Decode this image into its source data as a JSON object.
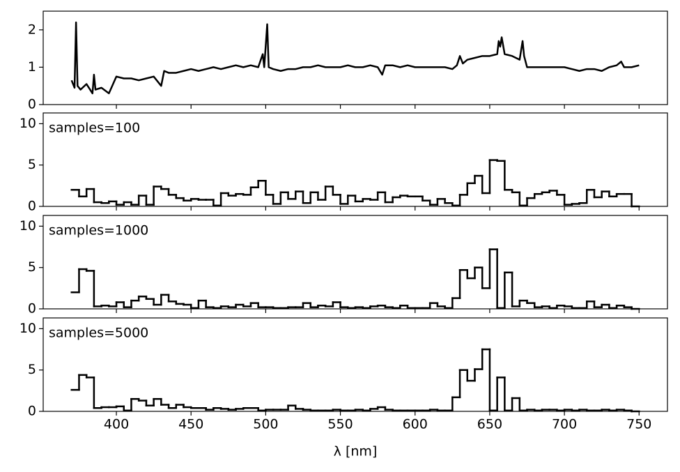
{
  "chart_data": [
    {
      "type": "line",
      "x": [
        370,
        372,
        373,
        374,
        376,
        380,
        384,
        385,
        386,
        390,
        395,
        400,
        405,
        410,
        415,
        420,
        425,
        430,
        432,
        435,
        440,
        445,
        450,
        455,
        460,
        465,
        470,
        475,
        480,
        485,
        490,
        495,
        498,
        499,
        501,
        502,
        505,
        510,
        515,
        520,
        525,
        530,
        535,
        540,
        545,
        550,
        555,
        560,
        565,
        570,
        575,
        578,
        580,
        585,
        590,
        595,
        600,
        605,
        610,
        615,
        620,
        625,
        628,
        630,
        632,
        635,
        640,
        645,
        650,
        655,
        656,
        657,
        658,
        660,
        665,
        670,
        672,
        673,
        675,
        680,
        685,
        690,
        695,
        700,
        705,
        710,
        715,
        720,
        725,
        730,
        735,
        738,
        740,
        745,
        750
      ],
      "values": [
        0.65,
        0.45,
        2.2,
        0.5,
        0.4,
        0.55,
        0.3,
        0.8,
        0.4,
        0.45,
        0.3,
        0.75,
        0.7,
        0.7,
        0.65,
        0.7,
        0.75,
        0.5,
        0.9,
        0.85,
        0.85,
        0.9,
        0.95,
        0.9,
        0.95,
        1.0,
        0.95,
        1.0,
        1.05,
        1.0,
        1.05,
        1.0,
        1.35,
        1.0,
        2.15,
        1.0,
        0.95,
        0.9,
        0.95,
        0.95,
        1.0,
        1.0,
        1.05,
        1.0,
        1.0,
        1.0,
        1.05,
        1.0,
        1.0,
        1.05,
        1.0,
        0.8,
        1.05,
        1.05,
        1.0,
        1.05,
        1.0,
        1.0,
        1.0,
        1.0,
        1.0,
        0.95,
        1.05,
        1.3,
        1.1,
        1.2,
        1.25,
        1.3,
        1.3,
        1.35,
        1.7,
        1.55,
        1.8,
        1.35,
        1.3,
        1.2,
        1.7,
        1.3,
        1.0,
        1.0,
        1.0,
        1.0,
        1.0,
        1.0,
        0.95,
        0.9,
        0.95,
        0.95,
        0.9,
        1.0,
        1.05,
        1.15,
        1.0,
        1.0,
        1.05
      ],
      "color": "#000000",
      "xlim": [
        351,
        769
      ],
      "ylim": [
        0,
        2.5
      ],
      "yticks": [
        0,
        1,
        2
      ],
      "xticks": [
        400,
        450,
        500,
        550,
        600,
        650,
        700,
        750
      ]
    },
    {
      "type": "histogram",
      "annotation": "samples=100",
      "color": "#000000",
      "bins": [
        370,
        375,
        380,
        385,
        390,
        395,
        400,
        405,
        410,
        415,
        420,
        425,
        430,
        435,
        440,
        445,
        450,
        455,
        460,
        465,
        470,
        475,
        480,
        485,
        490,
        495,
        500,
        505,
        510,
        515,
        520,
        525,
        530,
        535,
        540,
        545,
        550,
        555,
        560,
        565,
        570,
        575,
        580,
        585,
        590,
        595,
        600,
        605,
        610,
        615,
        620,
        625,
        630,
        635,
        640,
        645,
        650,
        655,
        660,
        665,
        670,
        675,
        680,
        685,
        690,
        695,
        700,
        705,
        710,
        715,
        720,
        725,
        730,
        735,
        740,
        745,
        750
      ],
      "values": [
        2.0,
        1.2,
        2.1,
        0.5,
        0.4,
        0.6,
        0.2,
        0.5,
        0.2,
        1.3,
        0.2,
        2.4,
        2.1,
        1.4,
        1.0,
        0.7,
        0.9,
        0.8,
        0.8,
        0.1,
        1.6,
        1.3,
        1.5,
        1.4,
        2.3,
        3.1,
        1.4,
        0.3,
        1.7,
        0.9,
        1.8,
        0.4,
        1.7,
        0.8,
        2.4,
        1.4,
        0.3,
        1.3,
        0.6,
        0.9,
        0.8,
        1.7,
        0.5,
        1.1,
        1.3,
        1.2,
        1.2,
        0.7,
        0.2,
        0.9,
        0.4,
        0.1,
        1.4,
        2.8,
        3.7,
        1.6,
        5.6,
        5.5,
        2.0,
        1.7,
        0.1,
        1.0,
        1.5,
        1.7,
        1.9,
        1.4,
        0.2,
        0.3,
        0.4,
        2.0,
        1.1,
        1.8,
        1.2,
        1.5,
        1.5,
        0.0
      ],
      "xlim": [
        351,
        769
      ],
      "ylim": [
        0,
        11.3
      ],
      "yticks": [
        0,
        5,
        10
      ],
      "xticks": [
        400,
        450,
        500,
        550,
        600,
        650,
        700,
        750
      ]
    },
    {
      "type": "histogram",
      "annotation": "samples=1000",
      "color": "#000000",
      "bins": [
        370,
        375,
        380,
        385,
        390,
        395,
        400,
        405,
        410,
        415,
        420,
        425,
        430,
        435,
        440,
        445,
        450,
        455,
        460,
        465,
        470,
        475,
        480,
        485,
        490,
        495,
        500,
        505,
        510,
        515,
        520,
        525,
        530,
        535,
        540,
        545,
        550,
        555,
        560,
        565,
        570,
        575,
        580,
        585,
        590,
        595,
        600,
        605,
        610,
        615,
        620,
        625,
        630,
        635,
        640,
        645,
        650,
        655,
        660,
        665,
        670,
        675,
        680,
        685,
        690,
        695,
        700,
        705,
        710,
        715,
        720,
        725,
        730,
        735,
        740,
        745,
        750
      ],
      "values": [
        2.0,
        4.8,
        4.6,
        0.3,
        0.4,
        0.3,
        0.8,
        0.2,
        1.0,
        1.5,
        1.2,
        0.5,
        1.7,
        0.9,
        0.6,
        0.5,
        0.1,
        1.0,
        0.2,
        0.1,
        0.3,
        0.2,
        0.5,
        0.3,
        0.7,
        0.2,
        0.2,
        0.1,
        0.1,
        0.2,
        0.2,
        0.7,
        0.2,
        0.4,
        0.3,
        0.8,
        0.2,
        0.1,
        0.2,
        0.1,
        0.3,
        0.4,
        0.2,
        0.1,
        0.4,
        0.1,
        0.1,
        0.1,
        0.7,
        0.3,
        0.1,
        1.3,
        4.7,
        3.7,
        5.0,
        2.5,
        7.2,
        0.1,
        4.4,
        0.3,
        1.0,
        0.7,
        0.2,
        0.3,
        0.1,
        0.4,
        0.3,
        0.1,
        0.1,
        0.9,
        0.2,
        0.5,
        0.1,
        0.4,
        0.2,
        0.0
      ],
      "xlim": [
        351,
        769
      ],
      "ylim": [
        0,
        11.3
      ],
      "yticks": [
        0,
        5,
        10
      ],
      "xticks": [
        400,
        450,
        500,
        550,
        600,
        650,
        700,
        750
      ]
    },
    {
      "type": "histogram",
      "annotation": "samples=5000",
      "color": "#000000",
      "xlabel": "λ [nm]",
      "bins": [
        370,
        375,
        380,
        385,
        390,
        395,
        400,
        405,
        410,
        415,
        420,
        425,
        430,
        435,
        440,
        445,
        450,
        455,
        460,
        465,
        470,
        475,
        480,
        485,
        490,
        495,
        500,
        505,
        510,
        515,
        520,
        525,
        530,
        535,
        540,
        545,
        550,
        555,
        560,
        565,
        570,
        575,
        580,
        585,
        590,
        595,
        600,
        605,
        610,
        615,
        620,
        625,
        630,
        635,
        640,
        645,
        650,
        655,
        660,
        665,
        670,
        675,
        680,
        685,
        690,
        695,
        700,
        705,
        710,
        715,
        720,
        725,
        730,
        735,
        740,
        745,
        750
      ],
      "values": [
        2.6,
        4.4,
        4.1,
        0.4,
        0.5,
        0.5,
        0.6,
        0.1,
        1.5,
        1.3,
        0.7,
        1.5,
        0.8,
        0.4,
        0.8,
        0.5,
        0.4,
        0.4,
        0.2,
        0.4,
        0.3,
        0.2,
        0.3,
        0.4,
        0.4,
        0.1,
        0.2,
        0.2,
        0.2,
        0.7,
        0.3,
        0.2,
        0.1,
        0.1,
        0.1,
        0.2,
        0.1,
        0.1,
        0.2,
        0.1,
        0.3,
        0.5,
        0.2,
        0.1,
        0.1,
        0.1,
        0.1,
        0.1,
        0.2,
        0.1,
        0.1,
        1.7,
        5.0,
        3.7,
        5.1,
        7.5,
        0.1,
        4.1,
        0.1,
        1.6,
        0.1,
        0.2,
        0.1,
        0.2,
        0.2,
        0.1,
        0.2,
        0.1,
        0.2,
        0.1,
        0.1,
        0.2,
        0.1,
        0.2,
        0.1,
        0.0
      ],
      "xlim": [
        351,
        769
      ],
      "ylim": [
        0,
        11.3
      ],
      "yticks": [
        0,
        5,
        10
      ],
      "xticks": [
        400,
        450,
        500,
        550,
        600,
        650,
        700,
        750
      ],
      "show_xtick_labels": true
    }
  ]
}
